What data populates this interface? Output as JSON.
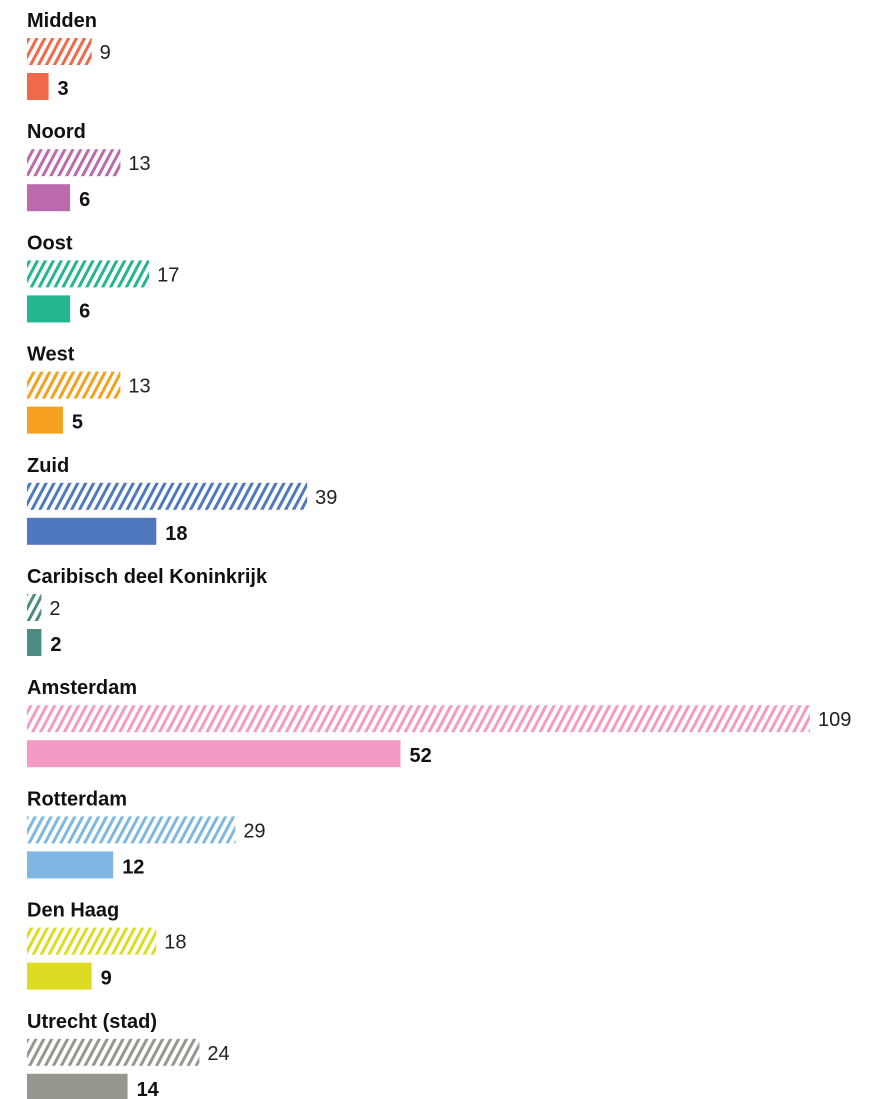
{
  "chart_data": {
    "type": "bar",
    "orientation": "horizontal",
    "title": "",
    "xlabel": "",
    "ylabel": "",
    "grid": false,
    "legend": "none",
    "axis_max": 109,
    "groups": [
      {
        "label": "Midden",
        "color": "#F0694A",
        "hatched_value": 9,
        "solid_value": 3
      },
      {
        "label": "Noord",
        "color": "#BB6AAE",
        "hatched_value": 13,
        "solid_value": 6
      },
      {
        "label": "Oost",
        "color": "#25B58F",
        "hatched_value": 17,
        "solid_value": 6
      },
      {
        "label": "West",
        "color": "#F5A01E",
        "hatched_value": 13,
        "solid_value": 5
      },
      {
        "label": "Zuid",
        "color": "#4F78BE",
        "hatched_value": 39,
        "solid_value": 18
      },
      {
        "label": "Caribisch deel Koninkrijk",
        "color": "#4C8C80",
        "hatched_value": 2,
        "solid_value": 2
      },
      {
        "label": "Amsterdam",
        "color": "#F39BC5",
        "hatched_value": 109,
        "solid_value": 52
      },
      {
        "label": "Rotterdam",
        "color": "#7FB7E3",
        "hatched_value": 29,
        "solid_value": 12
      },
      {
        "label": "Den Haag",
        "color": "#DCDC22",
        "hatched_value": 18,
        "solid_value": 9
      },
      {
        "label": "Utrecht (stad)",
        "color": "#97968F",
        "hatched_value": 24,
        "solid_value": 14
      }
    ]
  }
}
